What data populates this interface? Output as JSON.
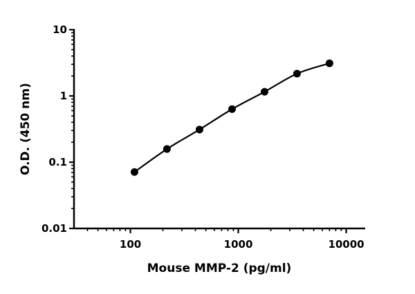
{
  "chart_data": {
    "type": "line",
    "title": "",
    "xlabel": "Mouse MMP-2 (pg/ml)",
    "ylabel": "O.D. (450 nm)",
    "xscale": "log",
    "yscale": "log",
    "xlim": [
      30,
      15000
    ],
    "ylim": [
      0.01,
      10
    ],
    "xticks": [
      100,
      1000,
      10000
    ],
    "xtick_labels": [
      "100",
      "1000",
      "10000"
    ],
    "yticks": [
      0.01,
      0.1,
      1,
      10
    ],
    "ytick_labels": [
      "0.01",
      "0.1",
      "1",
      "10"
    ],
    "grid": false,
    "series": [
      {
        "x": [
          109,
          218,
          437,
          875,
          1750,
          3500,
          7000
        ],
        "y": [
          0.071,
          0.158,
          0.311,
          0.632,
          1.156,
          2.17,
          3.11
        ],
        "marker": "circle",
        "color": "#000000",
        "fit_curve": true
      }
    ]
  }
}
